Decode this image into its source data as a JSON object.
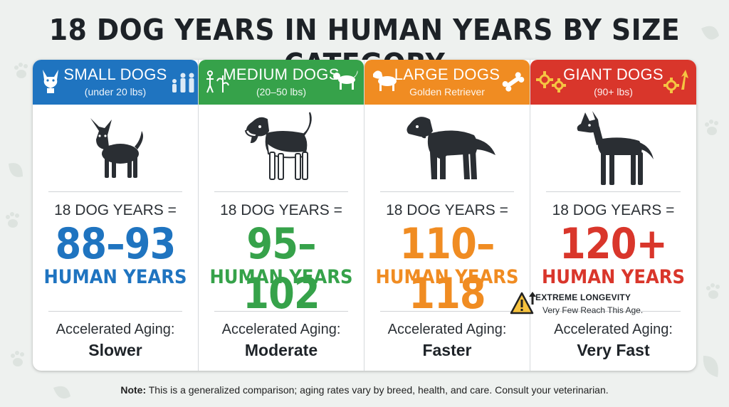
{
  "title": "18 DOG YEARS IN HUMAN YEARS BY SIZE CATEGORY",
  "columns": [
    {
      "name": "SMALL DOGS",
      "sub": "(under 20 lbs)",
      "equals": "18 DOG YEARS =",
      "range": "88–93",
      "human": "HUMAN YEARS",
      "aging_label": "Accelerated Aging:",
      "aging_value": "Slower",
      "color": "#1f74c0",
      "dog_icon": "chihuahua-icon"
    },
    {
      "name": "MEDIUM DOGS",
      "sub": "(20–50 lbs)",
      "equals": "18 DOG YEARS =",
      "range": "95–102",
      "human": "HUMAN YEARS",
      "aging_label": "Accelerated Aging:",
      "aging_value": "Moderate",
      "color": "#36a24a",
      "dog_icon": "beagle-icon"
    },
    {
      "name": "LARGE DOGS",
      "sub": "Golden Retriever",
      "equals": "18 DOG YEARS =",
      "range": "110–118",
      "human": "HUMAN YEARS",
      "aging_label": "Accelerated Aging:",
      "aging_value": "Faster",
      "color": "#f08c22",
      "dog_icon": "golden-retriever-icon"
    },
    {
      "name": "GIANT DOGS",
      "sub": "(90+ lbs)",
      "equals": "18 DOG YEARS =",
      "range": "120+",
      "human": "HUMAN YEARS",
      "aging_label": "Accelerated Aging:",
      "aging_value": "Very Fast",
      "color": "#d9362b",
      "dog_icon": "great-dane-icon"
    }
  ],
  "warning": {
    "title": "EXTREME LONGEVITY",
    "text": "Very Few Reach This Age.",
    "icon": "warning-triangle-icon"
  },
  "note": {
    "label": "Note:",
    "text": " This is a generalized comparison; aging rates vary by breed, health, and care. Consult your veterinarian."
  }
}
